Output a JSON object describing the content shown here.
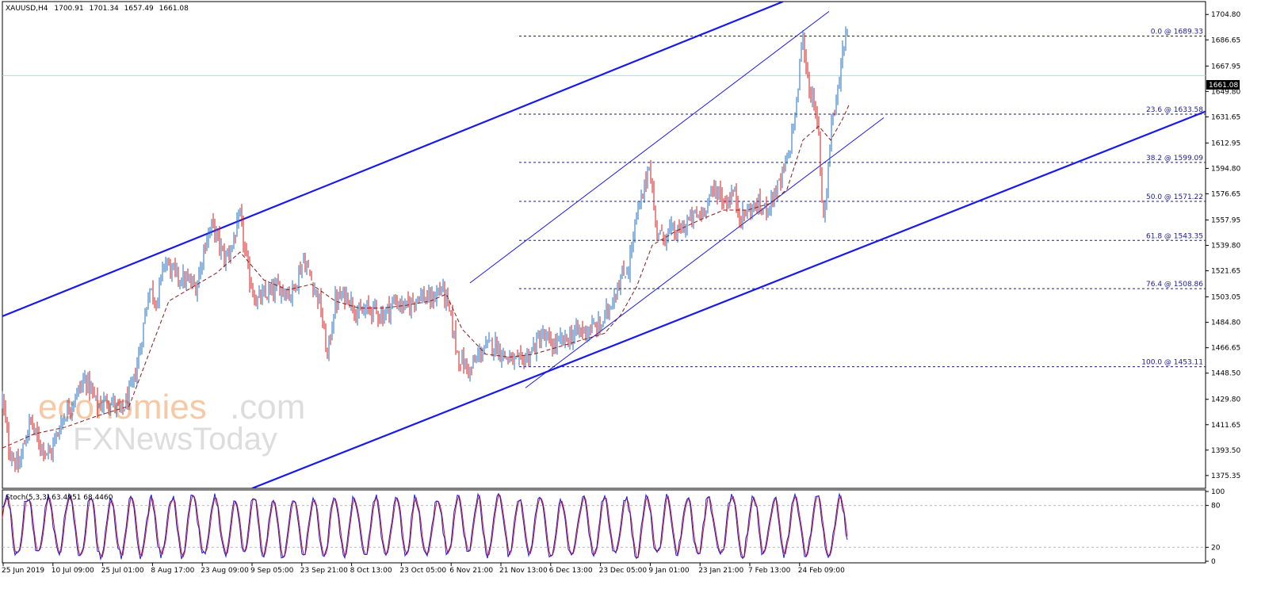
{
  "chart_data": {
    "type": "candlestick",
    "symbol_header": {
      "symbol": "XAUUSD,H4",
      "open": "1700.91",
      "high": "1701.34",
      "low": "1657.49",
      "close": "1661.08"
    },
    "current_price_label": "1661.08",
    "price_axis": {
      "min": 1366.2,
      "max": 1714.0,
      "ticks": [
        "1704.80",
        "1686.65",
        "1667.95",
        "1649.80",
        "1631.65",
        "1612.95",
        "1594.80",
        "1576.65",
        "1557.95",
        "1539.80",
        "1521.65",
        "1503.05",
        "1484.80",
        "1466.65",
        "1448.50",
        "1429.80",
        "1411.65",
        "1393.50",
        "1375.35"
      ]
    },
    "time_axis_labels": [
      "25 Jun 2019",
      "10 Jul 09:00",
      "25 Jul 01:00",
      "8 Aug 17:00",
      "23 Aug 09:00",
      "9 Sep 05:00",
      "23 Sep 21:00",
      "8 Oct 13:00",
      "23 Oct 05:00",
      "6 Nov 21:00",
      "21 Nov 13:00",
      "6 Dec 13:00",
      "23 Dec 05:00",
      "9 Jan 01:00",
      "23 Jan 21:00",
      "7 Feb 13:00",
      "24 Feb 09:00"
    ],
    "price_path": [
      [
        0,
        1430
      ],
      [
        8,
        1395
      ],
      [
        20,
        1380
      ],
      [
        35,
        1415
      ],
      [
        45,
        1400
      ],
      [
        60,
        1390
      ],
      [
        75,
        1415
      ],
      [
        90,
        1430
      ],
      [
        105,
        1445
      ],
      [
        120,
        1425
      ],
      [
        135,
        1430
      ],
      [
        150,
        1420
      ],
      [
        165,
        1440
      ],
      [
        175,
        1470
      ],
      [
        185,
        1510
      ],
      [
        195,
        1500
      ],
      [
        205,
        1530
      ],
      [
        215,
        1520
      ],
      [
        230,
        1515
      ],
      [
        245,
        1510
      ],
      [
        255,
        1540
      ],
      [
        265,
        1555
      ],
      [
        280,
        1530
      ],
      [
        290,
        1540
      ],
      [
        300,
        1560
      ],
      [
        310,
        1520
      ],
      [
        320,
        1500
      ],
      [
        335,
        1505
      ],
      [
        350,
        1510
      ],
      [
        365,
        1505
      ],
      [
        380,
        1530
      ],
      [
        390,
        1515
      ],
      [
        400,
        1500
      ],
      [
        410,
        1460
      ],
      [
        420,
        1500
      ],
      [
        435,
        1505
      ],
      [
        450,
        1490
      ],
      [
        465,
        1495
      ],
      [
        480,
        1490
      ],
      [
        495,
        1500
      ],
      [
        510,
        1495
      ],
      [
        525,
        1505
      ],
      [
        540,
        1500
      ],
      [
        555,
        1510
      ],
      [
        565,
        1490
      ],
      [
        575,
        1460
      ],
      [
        590,
        1450
      ],
      [
        605,
        1465
      ],
      [
        620,
        1470
      ],
      [
        635,
        1460
      ],
      [
        650,
        1455
      ],
      [
        665,
        1462
      ],
      [
        680,
        1475
      ],
      [
        695,
        1468
      ],
      [
        710,
        1472
      ],
      [
        725,
        1478
      ],
      [
        740,
        1480
      ],
      [
        755,
        1482
      ],
      [
        765,
        1495
      ],
      [
        775,
        1510
      ],
      [
        790,
        1525
      ],
      [
        800,
        1560
      ],
      [
        808,
        1575
      ],
      [
        816,
        1600
      ],
      [
        824,
        1555
      ],
      [
        832,
        1545
      ],
      [
        842,
        1550
      ],
      [
        852,
        1548
      ],
      [
        862,
        1555
      ],
      [
        872,
        1560
      ],
      [
        882,
        1562
      ],
      [
        892,
        1575
      ],
      [
        902,
        1580
      ],
      [
        912,
        1570
      ],
      [
        922,
        1578
      ],
      [
        932,
        1560
      ],
      [
        942,
        1565
      ],
      [
        952,
        1568
      ],
      [
        962,
        1565
      ],
      [
        972,
        1575
      ],
      [
        982,
        1585
      ],
      [
        992,
        1605
      ],
      [
        1002,
        1640
      ],
      [
        1009,
        1690
      ],
      [
        1016,
        1660
      ],
      [
        1023,
        1640
      ],
      [
        1030,
        1620
      ],
      [
        1035,
        1560
      ],
      [
        1040,
        1580
      ],
      [
        1046,
        1630
      ],
      [
        1052,
        1640
      ],
      [
        1058,
        1670
      ],
      [
        1063,
        1690
      ],
      [
        1067,
        1700
      ],
      [
        1068,
        1661
      ]
    ],
    "moving_average_path": [
      [
        0,
        1395
      ],
      [
        40,
        1405
      ],
      [
        80,
        1410
      ],
      [
        120,
        1418
      ],
      [
        160,
        1425
      ],
      [
        190,
        1470
      ],
      [
        210,
        1500
      ],
      [
        240,
        1510
      ],
      [
        270,
        1520
      ],
      [
        300,
        1535
      ],
      [
        330,
        1515
      ],
      [
        360,
        1508
      ],
      [
        390,
        1512
      ],
      [
        420,
        1500
      ],
      [
        450,
        1495
      ],
      [
        480,
        1495
      ],
      [
        510,
        1497
      ],
      [
        540,
        1500
      ],
      [
        560,
        1505
      ],
      [
        580,
        1480
      ],
      [
        610,
        1462
      ],
      [
        640,
        1460
      ],
      [
        670,
        1462
      ],
      [
        700,
        1467
      ],
      [
        730,
        1472
      ],
      [
        760,
        1477
      ],
      [
        780,
        1490
      ],
      [
        800,
        1510
      ],
      [
        820,
        1540
      ],
      [
        850,
        1550
      ],
      [
        880,
        1558
      ],
      [
        910,
        1565
      ],
      [
        940,
        1565
      ],
      [
        970,
        1570
      ],
      [
        990,
        1580
      ],
      [
        1010,
        1615
      ],
      [
        1030,
        1625
      ],
      [
        1045,
        1615
      ],
      [
        1060,
        1630
      ],
      [
        1068,
        1640
      ]
    ],
    "fibonacci_levels": [
      {
        "label": "0.0 @ 1689.33",
        "price": 1689.33
      },
      {
        "label": "23.6 @ 1633.58",
        "price": 1633.58
      },
      {
        "label": "38.2 @ 1599.09",
        "price": 1599.09
      },
      {
        "label": "50.0 @ 1571.22",
        "price": 1571.22
      },
      {
        "label": "61.8 @ 1543.35",
        "price": 1543.35
      },
      {
        "label": "76.4 @ 1508.86",
        "price": 1508.86
      },
      {
        "label": "100.0 @ 1453.11",
        "price": 1453.11
      }
    ],
    "trend_lines": [
      {
        "name": "outer-upper",
        "color": "#1a1ae6",
        "width": "thick",
        "from": [
          -5,
          1488
        ],
        "to": [
          985,
          1714
        ]
      },
      {
        "name": "outer-lower",
        "color": "#1a1ae6",
        "width": "thick",
        "from": [
          315,
          1366.2
        ],
        "to": [
          1596,
          1653
        ]
      },
      {
        "name": "inner-upper",
        "color": "#1a1ae6",
        "width": "thin",
        "from": [
          590,
          1513
        ],
        "to": [
          1043,
          1707
        ]
      },
      {
        "name": "inner-lower",
        "color": "#1a1ae6",
        "width": "thin",
        "from": [
          660,
          1438
        ],
        "to": [
          1112,
          1631
        ]
      }
    ],
    "stochastic": {
      "label": "Stoch(5,3,3) 63.4951 68.4460",
      "ticks": [
        "100",
        "80",
        "20",
        "0"
      ],
      "levels": [
        80,
        20
      ],
      "main_value": 63.4951,
      "signal_value": 68.446
    },
    "watermark": {
      "brand_part1": "economies",
      "brand_part2": ".com",
      "brand_line2": "FXNewsToday"
    },
    "colors": {
      "bull": "#1f6fbf",
      "bear": "#d41a1a",
      "trend": "#1a1ae6",
      "fib": "#1a1a8c",
      "current_price_line": "#9fe3e3",
      "ma": "#8b1a1a",
      "stoch_main": "#1a1ae6",
      "stoch_signal": "#d41a1a"
    }
  }
}
